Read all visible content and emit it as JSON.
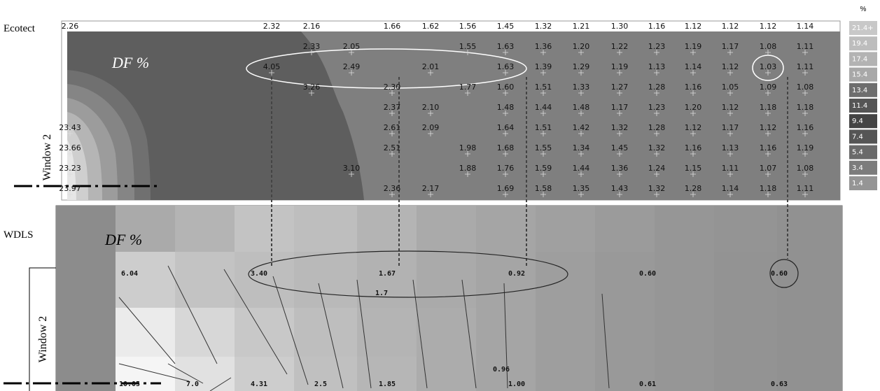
{
  "ecotect": {
    "label": "Ecotect",
    "df_label": "DF %",
    "window_label": "Window 2",
    "rows": [
      [
        "2.26",
        "2.32",
        "2.16",
        null,
        "1.66",
        "1.62",
        "1.56",
        "1.45",
        "1.32",
        "1.21",
        "1.30",
        "1.16",
        "1.12",
        "1.12",
        "1.12",
        "1.14"
      ],
      [
        null,
        null,
        "2.33",
        "2.05",
        null,
        null,
        "1.55",
        "1.63",
        "1.36",
        "1.20",
        "1.22",
        "1.23",
        "1.19",
        "1.17",
        "1.08",
        "1.11"
      ],
      [
        null,
        "4.05",
        null,
        "2.49",
        null,
        "2.01",
        null,
        "1.63",
        "1.39",
        "1.29",
        "1.19",
        "1.13",
        "1.14",
        "1.12",
        "1.03",
        "1.11"
      ],
      [
        null,
        null,
        "3.26",
        null,
        "2.30",
        null,
        "1.77",
        "1.60",
        "1.51",
        "1.33",
        "1.27",
        "1.28",
        "1.16",
        "1.05",
        "1.09",
        "1.08"
      ],
      [
        null,
        null,
        null,
        null,
        "2.37",
        "2.10",
        null,
        "1.48",
        "1.44",
        "1.48",
        "1.17",
        "1.23",
        "1.20",
        "1.12",
        "1.18",
        "1.18"
      ],
      [
        "23.43",
        null,
        null,
        null,
        "2.61",
        "2.09",
        null,
        "1.64",
        "1.51",
        "1.42",
        "1.32",
        "1.28",
        "1.12",
        "1.17",
        "1.12",
        "1.16"
      ],
      [
        "23.66",
        null,
        null,
        null,
        "2.51",
        null,
        "1.98",
        "1.68",
        "1.55",
        "1.34",
        "1.45",
        "1.32",
        "1.16",
        "1.13",
        "1.16",
        "1.19"
      ],
      [
        "23.23",
        null,
        null,
        "3.10",
        null,
        null,
        "1.88",
        "1.76",
        "1.59",
        "1.44",
        "1.36",
        "1.24",
        "1.15",
        "1.11",
        "1.07",
        "1.08"
      ],
      [
        "23.97",
        null,
        null,
        null,
        "2.36",
        "2.17",
        null,
        "1.69",
        "1.58",
        "1.35",
        "1.43",
        "1.32",
        "1.28",
        "1.14",
        "1.18",
        "1.11"
      ]
    ],
    "legend": {
      "unit": "%",
      "items": [
        "21.4+",
        "19.4",
        "17.4",
        "15.4",
        "13.4",
        "11.4",
        "9.4",
        "7.4",
        "5.4",
        "3.4",
        "1.4"
      ]
    }
  },
  "wdls": {
    "label": "WDLS",
    "df_label": "DF %",
    "window_label": "Window 2",
    "rows": [
      [
        "6.04",
        null,
        "3.40",
        null,
        "1.67",
        "0.92",
        "0.60",
        "0.60"
      ],
      [
        "10.05",
        "7.0",
        "4.31",
        "2.5",
        "1.85",
        "1.00",
        "0.61",
        "0.63"
      ]
    ],
    "annotations": [
      "1.7",
      "0.96"
    ]
  }
}
